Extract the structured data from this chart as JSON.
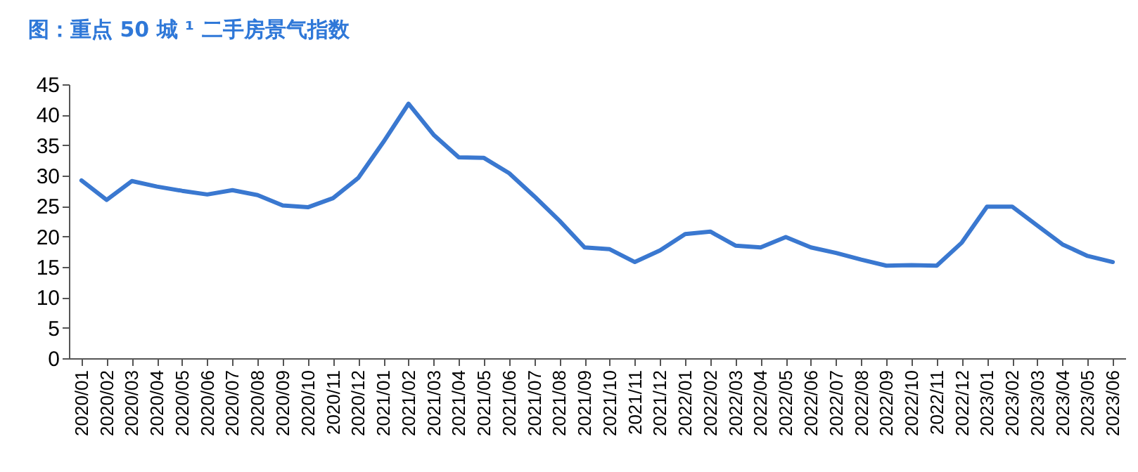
{
  "chart_data": {
    "type": "line",
    "title": "图：重点 50 城 ¹ 二手房景气指数",
    "categories": [
      "2020/01",
      "2020/02",
      "2020/03",
      "2020/04",
      "2020/05",
      "2020/06",
      "2020/07",
      "2020/08",
      "2020/09",
      "2020/10",
      "2020/11",
      "2020/12",
      "2021/01",
      "2021/02",
      "2021/03",
      "2021/04",
      "2021/05",
      "2021/06",
      "2021/07",
      "2021/08",
      "2021/09",
      "2021/10",
      "2021/11",
      "2021/12",
      "2022/01",
      "2022/02",
      "2022/03",
      "2022/04",
      "2022/05",
      "2022/06",
      "2022/07",
      "2022/08",
      "2022/09",
      "2022/10",
      "2022/11",
      "2022/12",
      "2023/01",
      "2023/02",
      "2023/03",
      "2023/04",
      "2023/05",
      "2023/06"
    ],
    "series": [
      {
        "color": "#3a78d0",
        "values": [
          29.2,
          26,
          29.1,
          28.2,
          27.5,
          26.9,
          27.6,
          26.8,
          25.1,
          24.8,
          26.3,
          29.6,
          35.5,
          41.8,
          36.7,
          33,
          32.9,
          30.4,
          26.6,
          22.6,
          18.2,
          17.9,
          15.8,
          17.7,
          20.4,
          20.8,
          18.5,
          18.2,
          19.9,
          18.2,
          17.3,
          16.2,
          15.2,
          15.3,
          15.2,
          19,
          24.9,
          24.9,
          21.8,
          18.7,
          16.8,
          15.8
        ]
      }
    ],
    "ylim": [
      0,
      45
    ],
    "yticks": [
      0,
      5,
      10,
      15,
      20,
      25,
      30,
      35,
      40,
      45
    ],
    "grid": false,
    "marker": "none",
    "line_style": "solid"
  }
}
